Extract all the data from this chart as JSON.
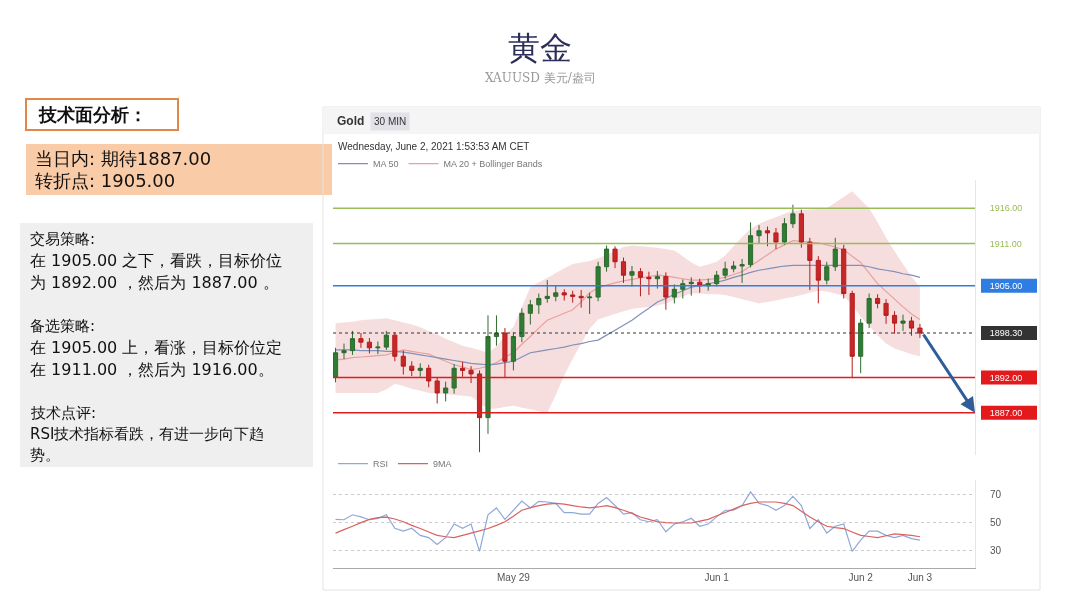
{
  "chart_data": [
    {
      "type": "other",
      "title": "技术面分析：",
      "annotations": [
        "当日内: 期待1887.00",
        "转折点: 1905.00",
        "交易策略:",
        "在 1905.00 之下，看跌，目标价位",
        "为 1892.00 ，然后为 1887.00 。",
        "备选策略:",
        "在 1905.00 上，看涨，目标价位定",
        "在 1911.00 ，然后为 1916.00。",
        "技术点评:",
        "RSI技术指标看跌，有进一步向下趋",
        "势。"
      ]
    },
    {
      "type": "candlestick",
      "title": "黄金",
      "subtitle": "XAUUSD 美元/盎司",
      "annotations": [
        "Gold",
        "30 MIN",
        "Wednesday, June 2, 2021 1:53:53 AM CET"
      ],
      "categories": [
        null,
        null,
        null,
        null,
        null,
        null,
        null,
        null,
        null,
        null,
        null,
        null,
        null,
        null,
        null,
        null,
        null,
        null,
        null,
        null,
        null,
        null,
        null,
        null,
        null,
        null,
        null,
        null,
        null,
        null,
        null,
        null,
        null,
        null,
        null,
        null,
        null,
        null,
        null,
        null,
        null,
        null,
        null,
        null,
        null,
        null,
        null,
        null,
        null,
        null,
        null,
        null,
        null,
        null,
        null,
        null,
        null,
        null,
        null,
        null,
        null,
        null,
        null,
        null,
        null,
        null,
        null,
        null,
        null,
        null
      ],
      "ohlc": [
        [
          1892.0,
          1896.2,
          1891.3,
          1895.5
        ],
        [
          1895.5,
          1896.8,
          1894.6,
          1895.8
        ],
        [
          1895.8,
          1898.6,
          1895.2,
          1897.5
        ],
        [
          1897.5,
          1898.3,
          1896.2,
          1897.0
        ],
        [
          1897.0,
          1897.6,
          1895.4,
          1896.2
        ],
        [
          1896.2,
          1897.1,
          1895.3,
          1896.3
        ],
        [
          1896.3,
          1898.6,
          1895.9,
          1898.0
        ],
        [
          1898.0,
          1898.4,
          1894.3,
          1895.0
        ],
        [
          1895.0,
          1895.8,
          1892.4,
          1893.6
        ],
        [
          1893.6,
          1894.3,
          1892.2,
          1893.0
        ],
        [
          1893.0,
          1894.0,
          1892.1,
          1893.3
        ],
        [
          1893.3,
          1893.8,
          1890.6,
          1891.5
        ],
        [
          1891.5,
          1892.0,
          1888.3,
          1889.8
        ],
        [
          1889.8,
          1891.4,
          1888.6,
          1890.5
        ],
        [
          1890.5,
          1893.9,
          1889.7,
          1893.3
        ],
        [
          1893.3,
          1894.2,
          1892.1,
          1893.0
        ],
        [
          1893.0,
          1893.6,
          1891.2,
          1892.5
        ],
        [
          1892.5,
          1893.0,
          1881.4,
          1886.3
        ],
        [
          1886.3,
          1900.8,
          1884.0,
          1897.8
        ],
        [
          1897.8,
          1900.8,
          1896.5,
          1898.3
        ],
        [
          1898.3,
          1899.0,
          1892.0,
          1894.3
        ],
        [
          1894.3,
          1898.4,
          1893.0,
          1897.8
        ],
        [
          1897.8,
          1901.8,
          1897.0,
          1901.1
        ],
        [
          1901.1,
          1903.0,
          1899.5,
          1902.3
        ],
        [
          1902.3,
          1903.9,
          1901.0,
          1903.2
        ],
        [
          1903.2,
          1905.8,
          1902.6,
          1903.5
        ],
        [
          1903.5,
          1905.0,
          1902.8,
          1904.0
        ],
        [
          1904.0,
          1904.5,
          1902.9,
          1903.7
        ],
        [
          1903.7,
          1904.3,
          1902.6,
          1903.5
        ],
        [
          1903.5,
          1904.4,
          1901.9,
          1903.3
        ],
        [
          1903.3,
          1904.0,
          1901.0,
          1903.4
        ],
        [
          1903.4,
          1908.4,
          1902.8,
          1907.7
        ],
        [
          1907.7,
          1910.7,
          1907.0,
          1910.2
        ],
        [
          1910.2,
          1910.6,
          1907.5,
          1908.4
        ],
        [
          1908.4,
          1909.0,
          1905.4,
          1906.5
        ],
        [
          1906.5,
          1907.8,
          1904.9,
          1907.0
        ],
        [
          1907.0,
          1907.5,
          1903.5,
          1906.2
        ],
        [
          1906.2,
          1907.0,
          1903.7,
          1906.0
        ],
        [
          1906.0,
          1907.1,
          1904.6,
          1906.3
        ],
        [
          1906.3,
          1906.9,
          1901.6,
          1903.4
        ],
        [
          1903.4,
          1905.2,
          1902.5,
          1904.5
        ],
        [
          1904.5,
          1905.9,
          1903.2,
          1905.3
        ],
        [
          1905.3,
          1906.2,
          1903.6,
          1905.5
        ],
        [
          1905.5,
          1906.0,
          1904.0,
          1905.0
        ],
        [
          1905.0,
          1906.0,
          1904.3,
          1905.3
        ],
        [
          1905.3,
          1907.1,
          1904.9,
          1906.5
        ],
        [
          1906.5,
          1908.4,
          1906.0,
          1907.4
        ],
        [
          1907.4,
          1908.5,
          1906.9,
          1907.8
        ],
        [
          1907.8,
          1908.8,
          1905.4,
          1908.0
        ],
        [
          1908.0,
          1914.0,
          1907.6,
          1912.1
        ],
        [
          1912.1,
          1913.6,
          1911.0,
          1912.8
        ],
        [
          1912.8,
          1913.4,
          1910.6,
          1912.5
        ],
        [
          1912.5,
          1913.2,
          1910.2,
          1911.2
        ],
        [
          1911.2,
          1914.6,
          1910.8,
          1913.8
        ],
        [
          1913.8,
          1916.5,
          1913.2,
          1915.2
        ],
        [
          1915.2,
          1915.8,
          1910.4,
          1911.2
        ],
        [
          1911.2,
          1911.8,
          1904.4,
          1908.6
        ],
        [
          1908.6,
          1909.2,
          1902.5,
          1905.8
        ],
        [
          1905.8,
          1908.4,
          1905.2,
          1907.7
        ],
        [
          1907.7,
          1911.8,
          1907.1,
          1910.2
        ],
        [
          1910.2,
          1910.8,
          1903.2,
          1903.9
        ],
        [
          1903.9,
          1904.3,
          1891.9,
          1895.0
        ],
        [
          1895.0,
          1900.3,
          1892.6,
          1899.7
        ],
        [
          1899.7,
          1903.9,
          1899.0,
          1903.2
        ],
        [
          1903.2,
          1903.8,
          1901.8,
          1902.5
        ],
        [
          1902.5,
          1903.1,
          1899.6,
          1900.8
        ],
        [
          1900.8,
          1901.4,
          1898.2,
          1899.7
        ],
        [
          1899.7,
          1900.9,
          1898.6,
          1900.0
        ],
        [
          1900.0,
          1900.6,
          1897.9,
          1899.0
        ],
        [
          1899.0,
          1899.6,
          1897.6,
          1898.3
        ]
      ],
      "series": [
        {
          "type": "line",
          "name": "MA 20 + Bollinger Bands",
          "color": "#e8a0a0",
          "values": [
            1894.5,
            1894.6,
            1894.8,
            1894.9,
            1895.0,
            1895.1,
            1895.2,
            1895.6,
            1895.9,
            1895.7,
            1895.5,
            1895.3,
            1894.8,
            1894.3,
            1893.8,
            1893.5,
            1893.1,
            1893.3,
            1893.6,
            1894.1,
            1894.9,
            1895.5,
            1896.7,
            1897.8,
            1899.0,
            1900.1,
            1900.6,
            1901.1,
            1901.6,
            1902.7,
            1904.0,
            1904.7,
            1905.1,
            1905.4,
            1905.7,
            1905.9,
            1906.1,
            1906.3,
            1906.5,
            1906.4,
            1906.2,
            1906.0,
            1905.8,
            1905.8,
            1905.9,
            1906.0,
            1906.2,
            1906.6,
            1907.0,
            1907.8,
            1908.6,
            1909.4,
            1910.2,
            1910.8,
            1911.4,
            1911.3,
            1911.2,
            1911.1,
            1910.8,
            1910.5,
            1910.1,
            1909.2,
            1908.3,
            1906.8,
            1905.3,
            1904.2,
            1903.1,
            1902.0,
            1901.0,
            1900.2
          ],
          "upper": [
            1899.7,
            1899.8,
            1899.9,
            1900.1,
            1900.2,
            1900.3,
            1900.4,
            1900.1,
            1899.8,
            1899.5,
            1899.1,
            1898.6,
            1898.1,
            1897.5,
            1897.0,
            1896.5,
            1896.2,
            1895.9,
            1895.5,
            1896.4,
            1897.9,
            1899.2,
            1902.0,
            1904.8,
            1905.5,
            1906.1,
            1906.8,
            1907.5,
            1908.1,
            1908.3,
            1908.5,
            1908.9,
            1909.4,
            1909.9,
            1910.5,
            1910.7,
            1910.6,
            1910.5,
            1910.4,
            1910.2,
            1910.0,
            1909.2,
            1908.3,
            1907.7,
            1908.0,
            1908.4,
            1909.3,
            1910.6,
            1911.9,
            1913.1,
            1913.8,
            1914.3,
            1914.7,
            1915.2,
            1915.6,
            1915.7,
            1915.8,
            1915.9,
            1916.0,
            1916.8,
            1917.6,
            1918.4,
            1917.2,
            1916.0,
            1914.0,
            1911.8,
            1909.9,
            1908.1,
            1906.3,
            1904.8
          ],
          "lower": [
            1889.8,
            1889.8,
            1889.8,
            1889.8,
            1889.8,
            1889.8,
            1890.3,
            1891.1,
            1890.8,
            1890.4,
            1890.1,
            1889.8,
            1889.7,
            1889.6,
            1889.5,
            1889.4,
            1889.3,
            1888.4,
            1887.5,
            1887.6,
            1887.8,
            1888.0,
            1887.7,
            1887.5,
            1887.2,
            1887.0,
            1889.5,
            1892.3,
            1894.6,
            1896.8,
            1898.9,
            1900.2,
            1900.6,
            1901.0,
            1901.4,
            1901.7,
            1901.9,
            1902.0,
            1902.2,
            1902.5,
            1903.0,
            1903.5,
            1903.9,
            1903.9,
            1903.8,
            1903.8,
            1903.7,
            1903.4,
            1903.1,
            1902.8,
            1902.5,
            1902.7,
            1902.9,
            1903.2,
            1903.4,
            1903.7,
            1904.0,
            1904.3,
            1904.2,
            1903.9,
            1903.5,
            1902.3,
            1900.6,
            1899.3,
            1898.0,
            1896.8,
            1896.1,
            1895.7,
            1895.3,
            1895.0
          ]
        },
        {
          "type": "line",
          "name": "MA 50",
          "color": "#8090b8",
          "values": [
            1895.9,
            1895.9,
            1895.9,
            1895.8,
            1895.8,
            1895.8,
            1895.7,
            1895.7,
            1895.6,
            1895.4,
            1895.2,
            1895.0,
            1894.8,
            1894.6,
            1894.4,
            1894.2,
            1894.0,
            1893.9,
            1893.8,
            1893.9,
            1894.1,
            1894.3,
            1894.9,
            1895.5,
            1895.7,
            1895.9,
            1896.1,
            1896.3,
            1896.6,
            1896.8,
            1897.1,
            1897.3,
            1898.0,
            1898.7,
            1899.4,
            1900.1,
            1901.0,
            1901.8,
            1902.7,
            1903.2,
            1903.8,
            1904.3,
            1904.8,
            1905.0,
            1905.3,
            1905.5,
            1905.8,
            1906.2,
            1906.5,
            1906.9,
            1907.2,
            1907.4,
            1907.6,
            1907.8,
            1907.9,
            1907.9,
            1907.9,
            1907.9,
            1907.9,
            1907.9,
            1907.9,
            1907.9,
            1907.9,
            1907.7,
            1907.4,
            1907.2,
            1907.0,
            1906.7,
            1906.5,
            1906.2
          ]
        }
      ],
      "ylim": [
        1881,
        1920
      ],
      "yticks": [
        {
          "value": 1916,
          "label": "1916.00"
        },
        {
          "value": 1911,
          "label": "1911.00"
        },
        {
          "value": 1905,
          "label": "1905.00"
        },
        {
          "value": 1898.3,
          "label": "1898.30"
        },
        {
          "value": 1892,
          "label": "1892.00"
        },
        {
          "value": 1887,
          "label": "1887.00"
        }
      ],
      "ref_lines": [
        {
          "axis": "y",
          "value": 1916,
          "color": "#9bbb59"
        },
        {
          "axis": "y",
          "value": 1911,
          "color": "#9bbb59"
        },
        {
          "axis": "y",
          "value": 1905,
          "color": "#2f7de1"
        },
        {
          "axis": "y",
          "value": 1898.3,
          "color": "#333333",
          "line_style": "dotted"
        },
        {
          "axis": "y",
          "value": 1892,
          "color": "#e31a1c"
        },
        {
          "axis": "y",
          "value": 1887,
          "color": "#e31a1c"
        }
      ],
      "legend": "top left",
      "tick_labels": "y"
    },
    {
      "type": "line",
      "categories": [
        null,
        null,
        null,
        null,
        null,
        null,
        null,
        null,
        null,
        null,
        null,
        null,
        null,
        null,
        null,
        null,
        null,
        null,
        null,
        null,
        null,
        "May 29",
        null,
        null,
        null,
        null,
        null,
        null,
        null,
        null,
        null,
        null,
        null,
        null,
        null,
        null,
        null,
        null,
        null,
        null,
        null,
        null,
        null,
        null,
        null,
        "Jun 1",
        null,
        null,
        null,
        null,
        null,
        null,
        null,
        null,
        null,
        null,
        null,
        null,
        null,
        null,
        null,
        null,
        "Jun 2",
        null,
        null,
        null,
        null,
        null,
        null,
        "Jun 3"
      ],
      "series": [
        {
          "name": "RSI",
          "color": "#8fa8d8",
          "values": [
            52.3,
            52,
            55.5,
            54,
            52,
            53,
            55.5,
            46,
            44,
            46,
            41,
            39.4,
            34.5,
            39.4,
            49,
            46,
            49,
            29.7,
            55.5,
            60.3,
            52.3,
            58.7,
            65.2,
            60.3,
            65,
            64.5,
            63.5,
            57,
            57,
            56,
            56,
            63.5,
            67.7,
            62,
            56,
            57,
            52,
            50.6,
            52,
            43.5,
            49,
            50.6,
            53,
            47.4,
            49,
            54,
            58.7,
            58.7,
            62,
            71.6,
            63.5,
            62,
            58.7,
            62,
            68.4,
            62,
            45.8,
            52,
            42.6,
            47.4,
            49,
            29.7,
            37.7,
            44,
            44,
            41,
            39.4,
            41,
            38.7,
            37.7
          ]
        },
        {
          "name": "9MA",
          "color": "#d9615f",
          "values": [
            42.6,
            45,
            47.4,
            50,
            52.3,
            53.5,
            53.9,
            52.5,
            50.6,
            48,
            45.8,
            43.4,
            41,
            40,
            39.4,
            41,
            42.6,
            44.2,
            45.8,
            48,
            50.6,
            54.5,
            58.7,
            60.5,
            62,
            63,
            63.5,
            63,
            62,
            61,
            60.3,
            61,
            62,
            60.5,
            58.7,
            56.5,
            53.9,
            52.3,
            50.6,
            50,
            49.7,
            49.7,
            49.7,
            51,
            52.3,
            54.8,
            57.1,
            59.5,
            62,
            63.5,
            64.5,
            64.5,
            64.5,
            63.5,
            62,
            58,
            53.9,
            50.6,
            47.4,
            46.5,
            45.8,
            43.4,
            41,
            40.2,
            39.4,
            40.7,
            42,
            41.5,
            41,
            40
          ]
        }
      ],
      "ylim": [
        18,
        80
      ],
      "yticks": [
        30,
        50,
        70
      ],
      "grid": "y",
      "legend": "top left"
    }
  ]
}
